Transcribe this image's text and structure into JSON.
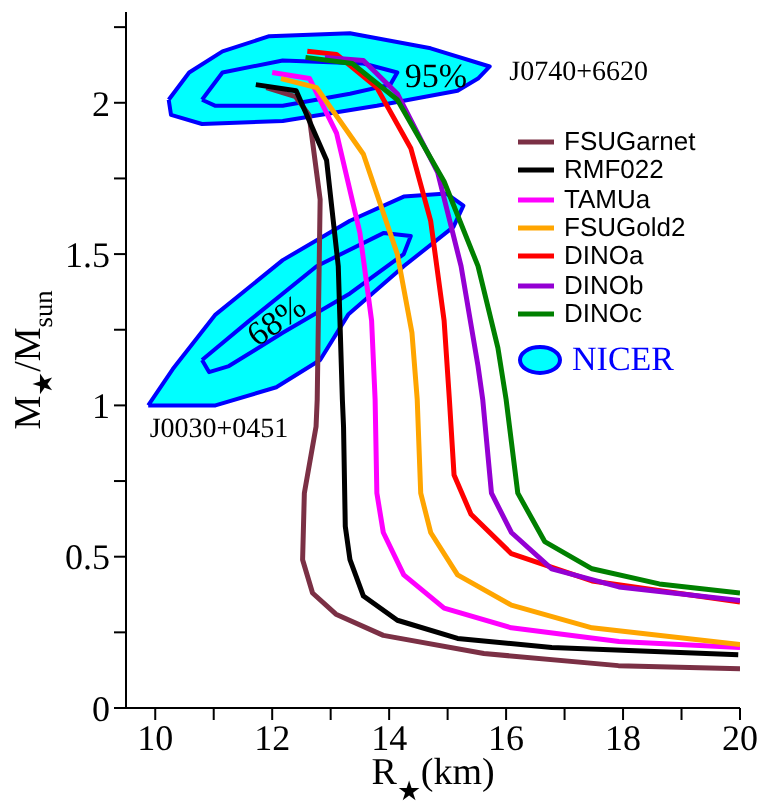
{
  "chart_data": {
    "type": "line",
    "xlabel": "R$_{★}$(km)",
    "ylabel": "M$_{★}$/M$_{sun}$",
    "xlim": [
      9.5,
      20
    ],
    "ylim": [
      0,
      2.3
    ],
    "xticks": [
      10,
      {
        "value": 11,
        "label": null
      },
      12,
      {
        "value": 13,
        "label": null
      },
      14,
      {
        "value": 15,
        "label": null
      },
      16,
      {
        "value": 17,
        "label": null
      },
      18,
      {
        "value": 19,
        "label": null
      },
      20
    ],
    "yticks": [
      0,
      {
        "value": 0.25,
        "label": null
      },
      0.5,
      {
        "value": 0.75,
        "label": null
      },
      1,
      {
        "value": 1.25,
        "label": null
      },
      1.5,
      {
        "value": 1.75,
        "label": null
      },
      2,
      {
        "value": 2.25,
        "label": null
      }
    ],
    "legend": "right",
    "annotations": [
      "95%",
      "68%",
      "J0740+6620",
      "J0030+0451"
    ],
    "series": [
      {
        "name": "FSUGarnet",
        "color": "#7b3045",
        "x": [
          11.9,
          12.4,
          12.63,
          12.82,
          12.77,
          12.75,
          12.55,
          12.52,
          12.69,
          13.09,
          13.9,
          15.62,
          17.92,
          20
        ],
        "values": [
          2.05,
          2.02,
          1.96,
          1.68,
          1.02,
          0.93,
          0.71,
          0.49,
          0.38,
          0.31,
          0.24,
          0.18,
          0.14,
          0.13
        ]
      },
      {
        "name": "RMF022",
        "color": "#000000",
        "x": [
          11.72,
          12.41,
          12.93,
          13.13,
          13.2,
          13.22,
          13.25,
          13.33,
          13.56,
          14.14,
          15.17,
          16.78,
          19.97
        ],
        "values": [
          2.06,
          2.04,
          1.81,
          1.46,
          1.02,
          0.93,
          0.6,
          0.49,
          0.37,
          0.29,
          0.23,
          0.2,
          0.176
        ]
      },
      {
        "name": "TAMUa",
        "color": "#ff00ff",
        "x": [
          12.0,
          12.64,
          13.1,
          13.5,
          13.7,
          13.76,
          13.79,
          13.9,
          14.25,
          14.94,
          16.09,
          17.93,
          20
        ],
        "values": [
          2.1,
          2.08,
          1.9,
          1.57,
          1.28,
          1.02,
          0.71,
          0.58,
          0.44,
          0.33,
          0.265,
          0.22,
          0.2
        ]
      },
      {
        "name": "FSUGold2",
        "color": "#ffa500",
        "x": [
          12.15,
          12.76,
          13.56,
          14.14,
          14.39,
          14.48,
          14.54,
          14.71,
          15.17,
          16.09,
          17.47,
          20
        ],
        "values": [
          2.08,
          2.05,
          1.83,
          1.5,
          1.24,
          1.02,
          0.71,
          0.58,
          0.44,
          0.34,
          0.265,
          0.21
        ]
      },
      {
        "name": "DINOa",
        "color": "#ff0000",
        "x": [
          12.6,
          13.1,
          13.79,
          14.37,
          14.71,
          14.94,
          15.03,
          15.11,
          15.4,
          16.09,
          17.47,
          20
        ],
        "values": [
          2.17,
          2.16,
          2.05,
          1.85,
          1.61,
          1.28,
          1.02,
          0.77,
          0.64,
          0.51,
          0.42,
          0.35
        ]
      },
      {
        "name": "DINOb",
        "color": "#9400d3",
        "x": [
          12.9,
          13.56,
          14.14,
          14.83,
          15.23,
          15.52,
          15.6,
          15.75,
          16.09,
          16.78,
          17.93,
          20
        ],
        "values": [
          2.15,
          2.14,
          2.03,
          1.77,
          1.46,
          1.13,
          1.02,
          0.71,
          0.58,
          0.46,
          0.4,
          0.355
        ]
      },
      {
        "name": "DINOc",
        "color": "#008000",
        "x": [
          12.57,
          13.37,
          14.14,
          14.94,
          15.52,
          15.86,
          16.0,
          16.2,
          16.66,
          17.47,
          18.62,
          20
        ],
        "values": [
          2.15,
          2.13,
          2.01,
          1.74,
          1.46,
          1.19,
          1.02,
          0.71,
          0.55,
          0.46,
          0.41,
          0.38
        ]
      },
      {
        "name": "NICER",
        "type": "area",
        "color": "#00ffff",
        "x": [
          10.23,
          10.58,
          11.15,
          11.95,
          13.33,
          14.71,
          15.72,
          15.52,
          15.17,
          13.79,
          12.18,
          10.8,
          10.27
        ],
        "values": [
          2.01,
          2.1,
          2.17,
          2.22,
          2.23,
          2.18,
          2.12,
          2.08,
          2.04,
          1.99,
          1.94,
          1.93,
          1.96
        ]
      },
      {
        "type": "area",
        "color": "#00ffff",
        "x": [
          10.8,
          11.15,
          12.18,
          13.56,
          14.14,
          14.02,
          13.33,
          12.18,
          11.03
        ],
        "values": [
          2.01,
          2.1,
          2.14,
          2.13,
          2.1,
          2.06,
          2.03,
          1.99,
          1.99
        ]
      },
      {
        "type": "area",
        "color": "#00ffff",
        "x": [
          9.88,
          10.3,
          11.03,
          12.18,
          13.33,
          14.25,
          14.98,
          15.27,
          15.1,
          14.25,
          13.3,
          12.82,
          12.07,
          11.03
        ],
        "values": [
          1.0,
          1.12,
          1.3,
          1.48,
          1.61,
          1.69,
          1.7,
          1.66,
          1.59,
          1.46,
          1.3,
          1.15,
          1.06,
          1.0
        ]
      },
      {
        "type": "area",
        "color": "#00ffff",
        "x": [
          10.8,
          11.61,
          12.76,
          13.91,
          14.37,
          14.25,
          13.33,
          12.18,
          11.26,
          10.92
        ],
        "values": [
          1.15,
          1.28,
          1.46,
          1.57,
          1.56,
          1.5,
          1.37,
          1.24,
          1.13,
          1.11
        ]
      }
    ]
  }
}
